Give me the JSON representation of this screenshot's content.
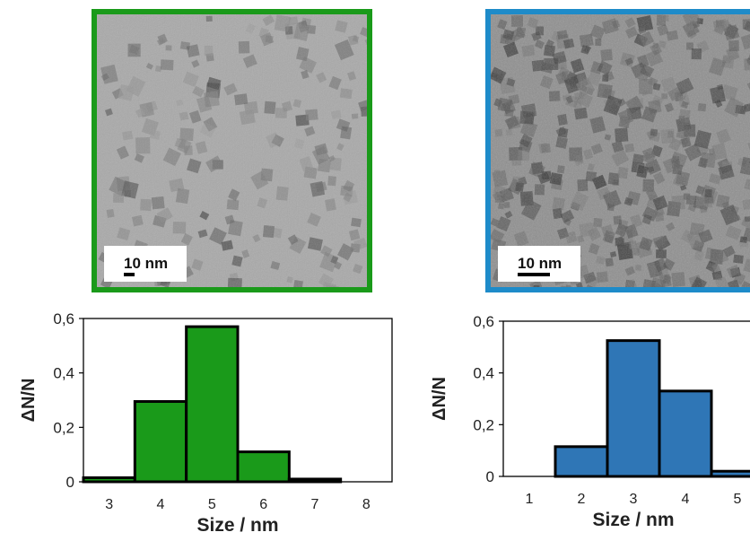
{
  "colors": {
    "left_frame": "#1a9a1a",
    "right_frame": "#1e8bc9",
    "left_bars": "#1a9a1a",
    "right_bars": "#2f76b6"
  },
  "images": {
    "left": {
      "scale_label": "10 nm"
    },
    "right": {
      "scale_label": "10 nm"
    }
  },
  "chart_data": [
    {
      "type": "bar",
      "categories": [
        "3",
        "4",
        "5",
        "6",
        "7",
        "8"
      ],
      "values": [
        0.015,
        0.295,
        0.57,
        0.11,
        0.01,
        0.0
      ],
      "xlabel": "Size / nm",
      "ylabel": "ΔN/N",
      "ylim": [
        0,
        0.6
      ],
      "yticks": [
        "0",
        "0,2",
        "0,4",
        "0,6"
      ],
      "grid": false
    },
    {
      "type": "bar",
      "categories": [
        "1",
        "2",
        "3",
        "4",
        "5"
      ],
      "values": [
        0.0,
        0.115,
        0.525,
        0.33,
        0.02
      ],
      "xlabel": "Size / nm",
      "ylabel": "ΔN/N",
      "ylim": [
        0,
        0.6
      ],
      "yticks": [
        "0",
        "0,2",
        "0,4",
        "0,6"
      ],
      "grid": false
    }
  ]
}
